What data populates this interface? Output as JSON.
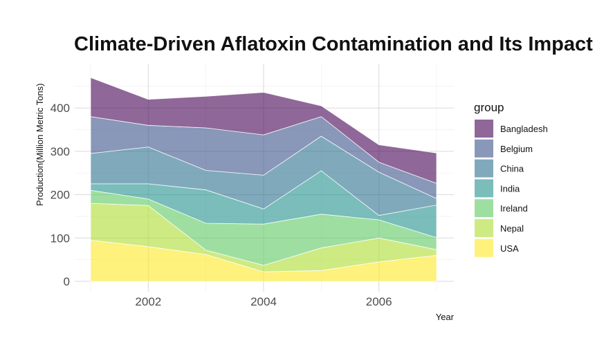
{
  "chart_data": {
    "type": "area",
    "stacked": true,
    "title": "Climate-Driven Aflatoxin Contamination and Its Impact",
    "xlabel": "Year",
    "ylabel": "Production(Million Metric Tons)",
    "x": [
      2001,
      2002,
      2003,
      2004,
      2005,
      2006,
      2007
    ],
    "xticks": [
      2002,
      2004,
      2006
    ],
    "yticks": [
      0,
      100,
      200,
      300,
      400
    ],
    "xlim": [
      2001,
      2007
    ],
    "ylim": [
      0,
      470
    ],
    "grid": true,
    "legend_title": "group",
    "legend_position": "right",
    "series": [
      {
        "name": "USA",
        "color": "#fde725",
        "values": [
          95,
          80,
          62,
          22,
          25,
          45,
          60
        ]
      },
      {
        "name": "Nepal",
        "color": "#addc30",
        "values": [
          85,
          95,
          10,
          15,
          52,
          55,
          13
        ]
      },
      {
        "name": "Ireland",
        "color": "#5ec962",
        "values": [
          30,
          15,
          62,
          95,
          78,
          42,
          28
        ]
      },
      {
        "name": "India",
        "color": "#21918c",
        "values": [
          15,
          35,
          77,
          35,
          100,
          10,
          75
        ]
      },
      {
        "name": "China",
        "color": "#2c728e",
        "values": [
          70,
          85,
          45,
          78,
          80,
          100,
          15
        ]
      },
      {
        "name": "Belgium",
        "color": "#3b528b",
        "values": [
          85,
          50,
          98,
          93,
          45,
          23,
          35
        ]
      },
      {
        "name": "Bangladesh",
        "color": "#440154",
        "values": [
          90,
          60,
          73,
          98,
          25,
          40,
          70
        ]
      }
    ]
  }
}
